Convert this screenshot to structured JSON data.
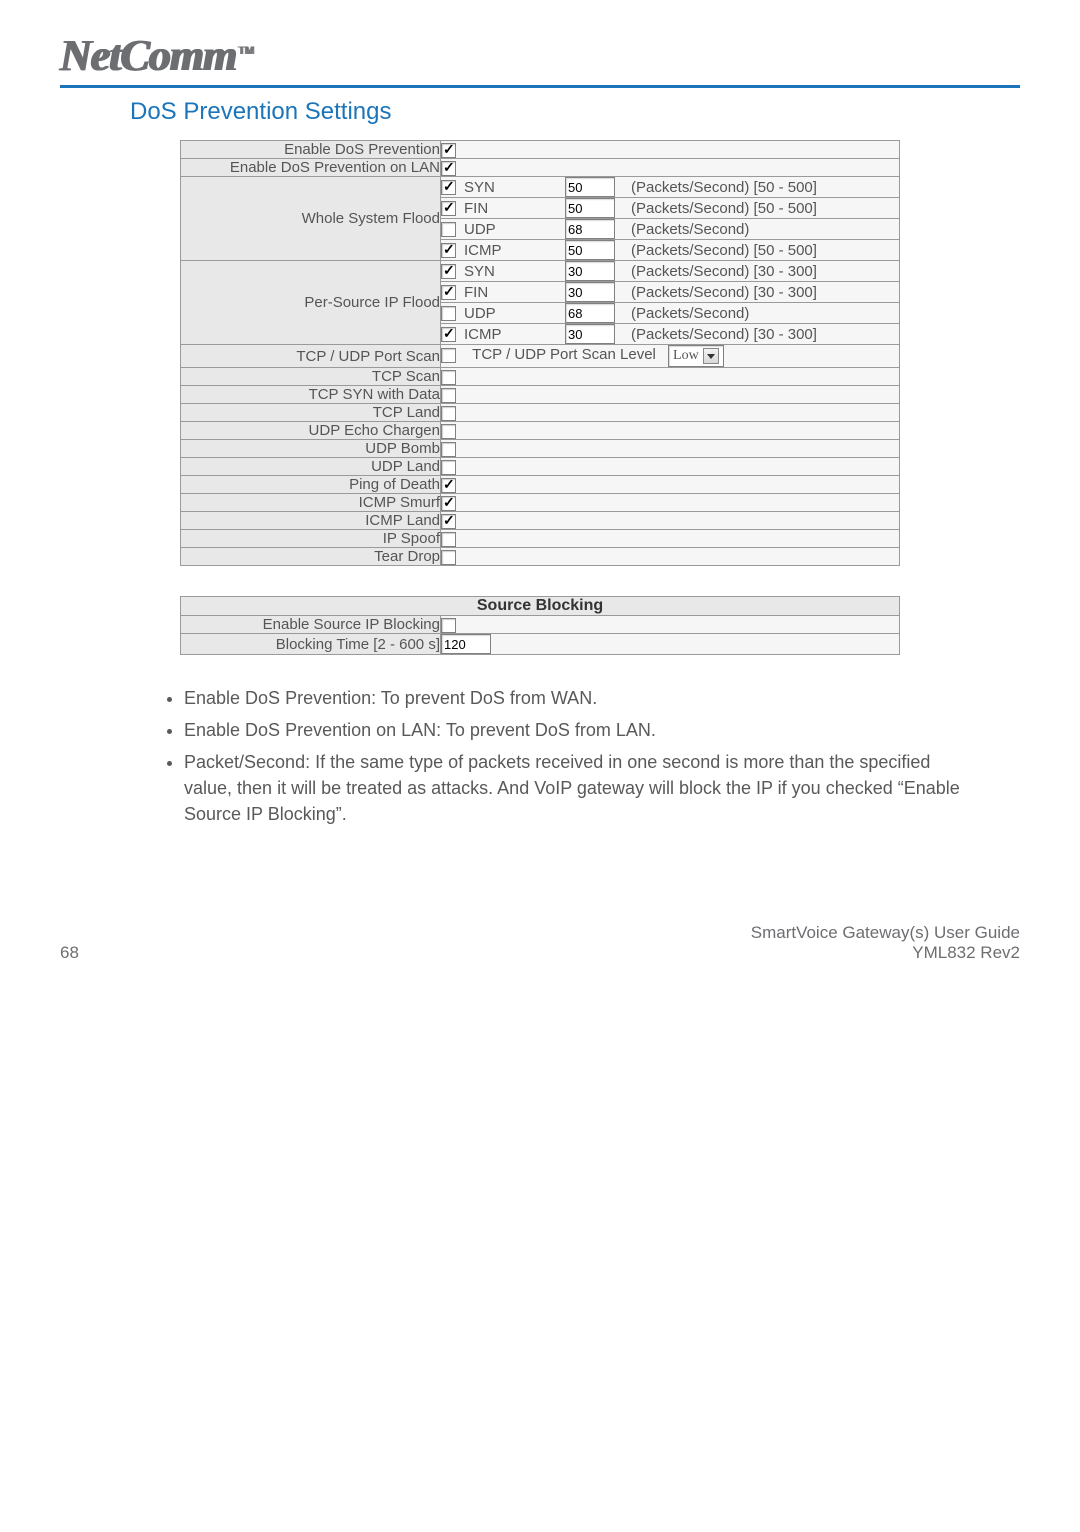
{
  "brand": {
    "name": "NetComm",
    "tm": "TM"
  },
  "section_title": "DoS Prevention Settings",
  "rows": {
    "enable_dos": {
      "label": "Enable DoS Prevention",
      "checked": true
    },
    "enable_dos_lan": {
      "label": "Enable DoS Prevention on LAN",
      "checked": true
    },
    "whole_system_flood": {
      "label": "Whole System Flood",
      "items": [
        {
          "proto": "SYN",
          "checked": true,
          "value": "50",
          "suffix": "(Packets/Second) [50 - 500]"
        },
        {
          "proto": "FIN",
          "checked": true,
          "value": "50",
          "suffix": "(Packets/Second) [50 - 500]"
        },
        {
          "proto": "UDP",
          "checked": false,
          "value": "68",
          "suffix": "(Packets/Second)"
        },
        {
          "proto": "ICMP",
          "checked": true,
          "value": "50",
          "suffix": "(Packets/Second) [50 - 500]"
        }
      ]
    },
    "per_source_flood": {
      "label": "Per-Source IP Flood",
      "items": [
        {
          "proto": "SYN",
          "checked": true,
          "value": "30",
          "suffix": "(Packets/Second) [30 - 300]"
        },
        {
          "proto": "FIN",
          "checked": true,
          "value": "30",
          "suffix": "(Packets/Second) [30 - 300]"
        },
        {
          "proto": "UDP",
          "checked": false,
          "value": "68",
          "suffix": "(Packets/Second)"
        },
        {
          "proto": "ICMP",
          "checked": true,
          "value": "30",
          "suffix": "(Packets/Second) [30 - 300]"
        }
      ]
    },
    "port_scan": {
      "label": "TCP / UDP Port Scan",
      "checked": false,
      "level_label": "TCP / UDP Port Scan Level",
      "level_value": "Low"
    },
    "simple_rows": [
      {
        "label": "TCP Scan",
        "checked": false
      },
      {
        "label": "TCP SYN with Data",
        "checked": false
      },
      {
        "label": "TCP Land",
        "checked": false
      },
      {
        "label": "UDP Echo Chargen",
        "checked": false
      },
      {
        "label": "UDP Bomb",
        "checked": false
      },
      {
        "label": "UDP Land",
        "checked": false
      },
      {
        "label": "Ping of Death",
        "checked": true
      },
      {
        "label": "ICMP Smurf",
        "checked": true
      },
      {
        "label": "ICMP Land",
        "checked": true
      },
      {
        "label": "IP Spoof",
        "checked": false
      },
      {
        "label": "Tear Drop",
        "checked": false
      }
    ]
  },
  "source_blocking": {
    "header": "Source Blocking",
    "enable_label": "Enable Source IP Blocking",
    "enable_checked": false,
    "time_label": "Blocking Time [2 - 600 s]",
    "time_value": "120"
  },
  "notes": [
    "Enable DoS Prevention: To prevent DoS from WAN.",
    "Enable DoS Prevention on LAN: To prevent DoS from LAN.",
    "Packet/Second: If the same type of packets received in one second is more than the specified value, then it will be treated as attacks. And VoIP gateway will block the IP if you checked “Enable Source IP Blocking”."
  ],
  "footer": {
    "page": "68",
    "guide": "SmartVoice Gateway(s) User Guide",
    "rev": "YML832 Rev2"
  },
  "styling": {
    "accent_color": "#1b75bb",
    "label_bg": "#e8e8e8",
    "value_bg": "#f6f6f6",
    "border_color": "#9a9a9a",
    "text_color": "#555555"
  }
}
